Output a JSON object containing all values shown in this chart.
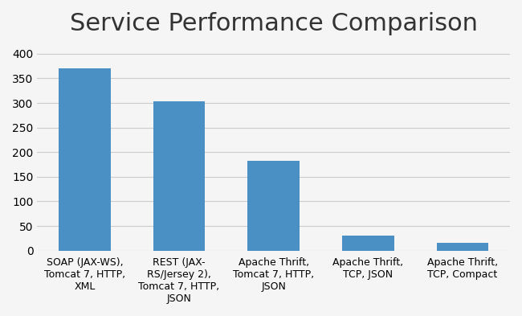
{
  "title": "Service Performance Comparison",
  "title_fontsize": 22,
  "categories": [
    "SOAP (JAX-WS),\nTomcat 7, HTTP,\nXML",
    "REST (JAX-\nRS/Jersey 2),\nTomcat 7, HTTP,\nJSON",
    "Apache Thrift,\nTomcat 7, HTTP,\nJSON",
    "Apache Thrift,\nTCP, JSON",
    "Apache Thrift,\nTCP, Compact"
  ],
  "values": [
    370,
    303,
    183,
    30,
    15
  ],
  "bar_color": "#4a90c4",
  "ylim": [
    0,
    420
  ],
  "yticks": [
    0,
    50,
    100,
    150,
    200,
    250,
    300,
    350,
    400
  ],
  "grid_color": "#cccccc",
  "background_color": "#f5f5f5",
  "tick_fontsize": 10,
  "label_fontsize": 9,
  "bar_width": 0.55
}
